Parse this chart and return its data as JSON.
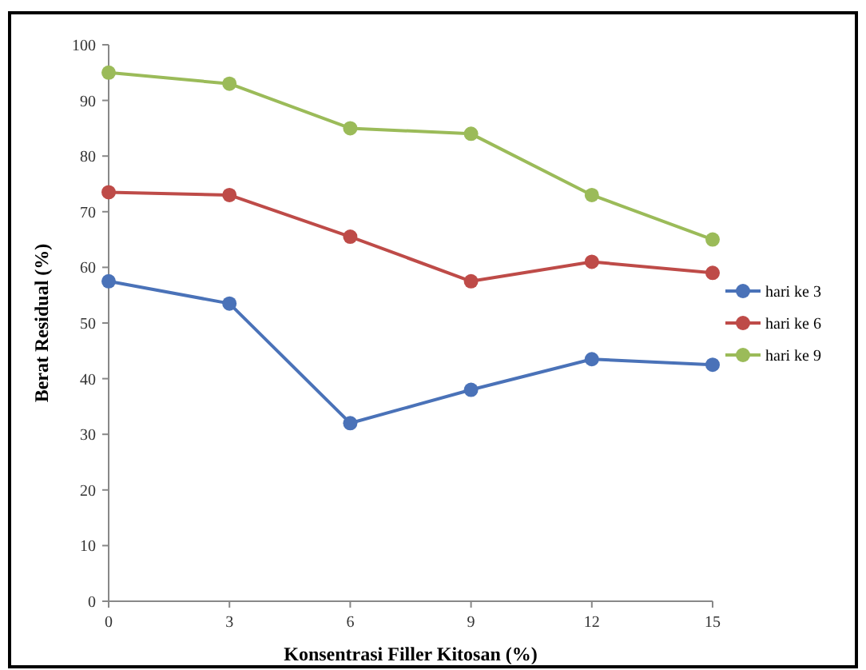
{
  "chart_data": {
    "type": "line",
    "xlabel": "Konsentrasi Filler Kitosan (%)",
    "ylabel": "Berat Residual  (%)",
    "x": [
      0,
      3,
      6,
      9,
      12,
      15
    ],
    "series": [
      {
        "name": "hari ke 3",
        "color": "#4a72b8",
        "values": [
          57.5,
          53.5,
          32,
          38,
          43.5,
          42.5
        ]
      },
      {
        "name": "hari ke 6",
        "color": "#be4b48",
        "values": [
          73.5,
          73,
          65.5,
          57.5,
          61,
          59
        ]
      },
      {
        "name": "hari ke 9",
        "color": "#9bbb59",
        "values": [
          95,
          93,
          85,
          84,
          73,
          65
        ]
      }
    ],
    "xlim": [
      0,
      15
    ],
    "xticks": [
      0,
      3,
      6,
      9,
      12,
      15
    ],
    "ylim": [
      0,
      100
    ],
    "yticks": [
      0,
      10,
      20,
      30,
      40,
      50,
      60,
      70,
      80,
      90,
      100
    ],
    "legend": "right",
    "marker": "circle",
    "line_style": "solid",
    "grid": false
  }
}
